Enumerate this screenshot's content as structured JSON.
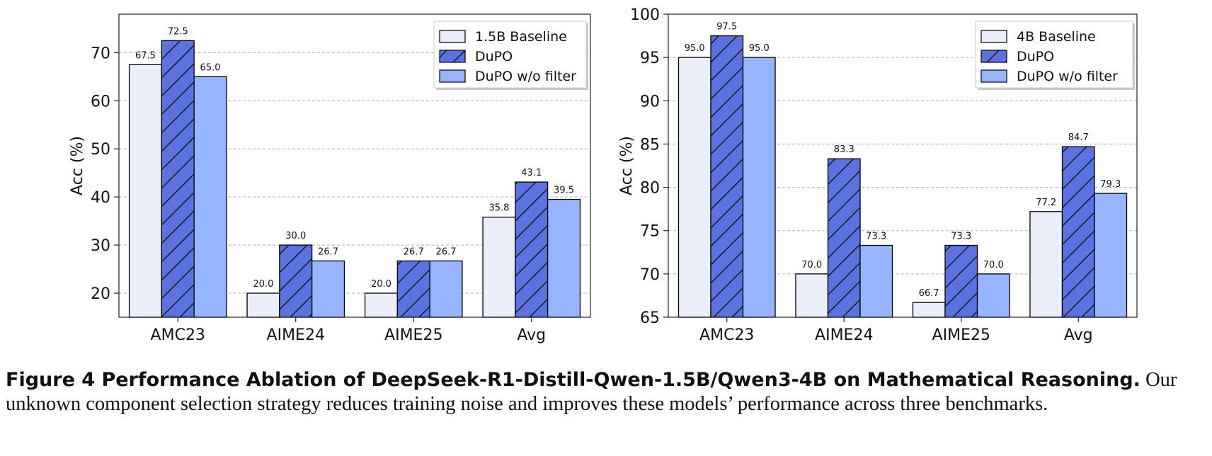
{
  "colors": {
    "baseline_fill": "#eaeef8",
    "dupo_fill": "#5a73e0",
    "nofilter_fill": "#97b5ff",
    "edge": "#000000",
    "grid": "#b0b0b0"
  },
  "chart_data": [
    {
      "type": "bar",
      "categories": [
        "AMC23",
        "AIME24",
        "AIME25",
        "Avg"
      ],
      "ylabel": "Acc (%)",
      "ylim": [
        15,
        78
      ],
      "yticks": [
        20,
        30,
        40,
        50,
        60,
        70
      ],
      "grid": true,
      "legend_position": "top-right",
      "series": [
        {
          "name": "1.5B Baseline",
          "values": [
            67.5,
            20.0,
            20.0,
            35.8
          ],
          "labels": [
            "67.5",
            "20.0",
            "20.0",
            "35.8"
          ],
          "style": "baseline"
        },
        {
          "name": "DuPO",
          "values": [
            72.5,
            30.0,
            26.7,
            43.1
          ],
          "labels": [
            "72.5",
            "30.0",
            "26.7",
            "43.1"
          ],
          "style": "dupo"
        },
        {
          "name": "DuPO w/o filter",
          "values": [
            65.0,
            26.7,
            26.7,
            39.5
          ],
          "labels": [
            "65.0",
            "26.7",
            "26.7",
            "39.5"
          ],
          "style": "nofilter"
        }
      ]
    },
    {
      "type": "bar",
      "categories": [
        "AMC23",
        "AIME24",
        "AIME25",
        "Avg"
      ],
      "ylabel": "Acc (%)",
      "ylim": [
        65,
        100
      ],
      "yticks": [
        65,
        70,
        75,
        80,
        85,
        90,
        95,
        100
      ],
      "grid": true,
      "legend_position": "top-right",
      "series": [
        {
          "name": "4B Baseline",
          "values": [
            95.0,
            70.0,
            66.7,
            77.2
          ],
          "labels": [
            "95.0",
            "70.0",
            "66.7",
            "77.2"
          ],
          "style": "baseline"
        },
        {
          "name": "DuPO",
          "values": [
            97.5,
            83.3,
            73.3,
            84.7
          ],
          "labels": [
            "97.5",
            "83.3",
            "73.3",
            "84.7"
          ],
          "style": "dupo"
        },
        {
          "name": "DuPO w/o filter",
          "values": [
            95.0,
            73.3,
            70.0,
            79.3
          ],
          "labels": [
            "95.0",
            "73.3",
            "70.0",
            "79.3"
          ],
          "style": "nofilter"
        }
      ]
    }
  ],
  "caption": {
    "title": "Figure 4  Performance Ablation of DeepSeek-R1-Distill-Qwen-1.5B/Qwen3-4B on Mathematical Reasoning",
    "title_end": ".",
    "text": "Our unknown component selection strategy reduces training noise and improves these models’ performance across three benchmarks."
  }
}
